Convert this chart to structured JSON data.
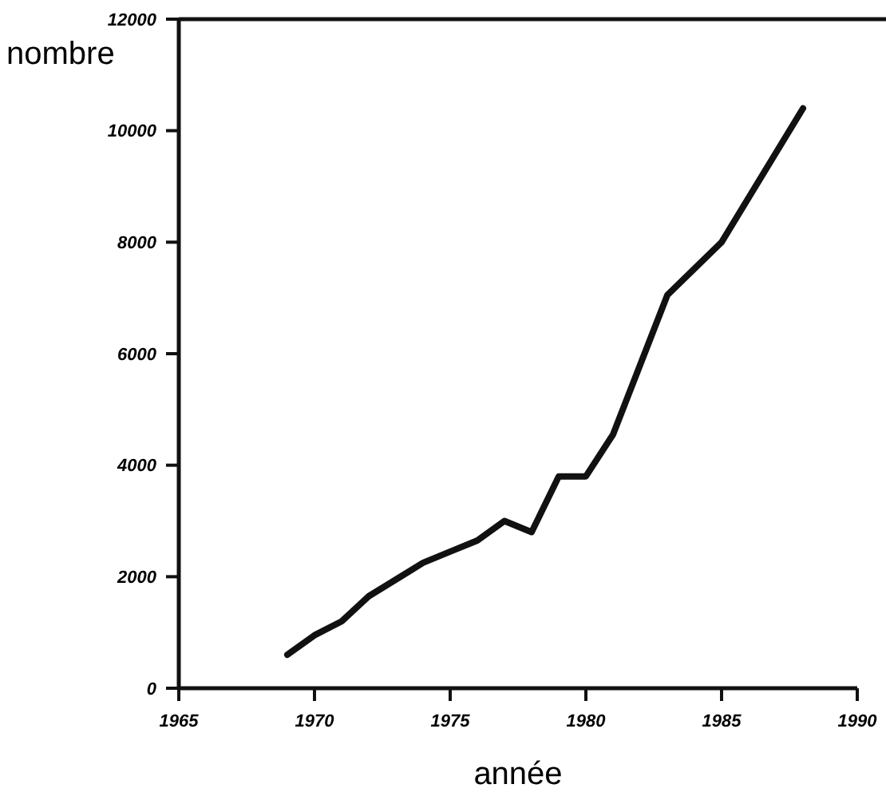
{
  "chart_data": {
    "type": "line",
    "xlabel": "année",
    "ylabel": "nombre",
    "x": [
      1969,
      1970,
      1971,
      1972,
      1974,
      1975,
      1976,
      1977,
      1978,
      1979,
      1980,
      1981,
      1983,
      1985,
      1988
    ],
    "series": [
      {
        "color": "#111111",
        "values": [
          600,
          950,
          1200,
          1650,
          2250,
          2450,
          2650,
          3000,
          2800,
          3800,
          3800,
          4550,
          7050,
          8000,
          10400
        ]
      }
    ],
    "xlim": [
      1965,
      1990
    ],
    "xticks": [
      1965,
      1970,
      1975,
      1980,
      1985,
      1990
    ],
    "ylim": [
      0,
      12000
    ],
    "yticks": [
      0,
      2000,
      4000,
      6000,
      8000,
      10000,
      12000
    ],
    "line_style": "solid"
  }
}
